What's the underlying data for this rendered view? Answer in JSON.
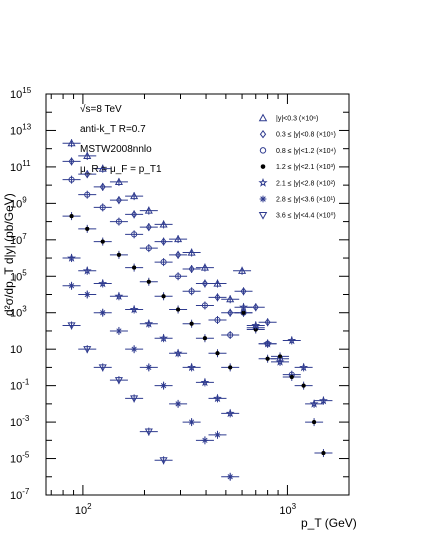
{
  "chart_data": {
    "type": "scatter",
    "title": "",
    "xlabel": "p_T (GeV)",
    "ylabel": "d²σ/dp_T d|y| (pb/GeV)",
    "x_scale": "log",
    "y_scale": "log",
    "xlim": [
      66,
      2000
    ],
    "ylim": [
      1e-07,
      1000000000000000.0
    ],
    "x_tick_labels": [
      {
        "value": 100,
        "base": "10",
        "exp": "2"
      },
      {
        "value": 1000,
        "base": "10",
        "exp": "3"
      }
    ],
    "y_tick_labels": [
      {
        "value": 1e-07,
        "base": "10",
        "exp": "-7"
      },
      {
        "value": 1e-05,
        "base": "10",
        "exp": "-5"
      },
      {
        "value": 0.001,
        "base": "10",
        "exp": "-3"
      },
      {
        "value": 0.1,
        "base": "10",
        "exp": "-1"
      },
      {
        "value": 10,
        "base": "10",
        "exp": ""
      },
      {
        "value": 1000.0,
        "base": "10",
        "exp": "3"
      },
      {
        "value": 100000.0,
        "base": "10",
        "exp": "5"
      },
      {
        "value": 10000000.0,
        "base": "10",
        "exp": "7"
      },
      {
        "value": 1000000000.0,
        "base": "10",
        "exp": "9"
      },
      {
        "value": 100000000000.0,
        "base": "10",
        "exp": "11"
      },
      {
        "value": 10000000000000.0,
        "base": "10",
        "exp": "13"
      },
      {
        "value": 1000000000000000.0,
        "base": "10",
        "exp": "15"
      }
    ],
    "annotations": [
      "√s=8 TeV",
      "anti-k_T R=0.7",
      "MSTW2008nnlo",
      "μ_R = μ_F = p_T1"
    ],
    "legend_position": "top-right",
    "series": [
      {
        "name": "|y|<0.3 (×10⁶)",
        "marker": "triangle-up-open",
        "x": [
          88,
          105,
          125,
          150,
          178,
          210,
          248,
          292,
          340,
          395,
          455,
          525,
          600
        ],
        "y": [
          2000000000000.0,
          400000000000.0,
          80000000000.0,
          15000000000.0,
          2500000000.0,
          400000000.0,
          70000000.0,
          11000000.0,
          2000000.0,
          300000.0,
          40000.0,
          5500.0,
          200000.0
        ]
      },
      {
        "name": "0.3 ≤ |y|<0.8 (×10⁵)",
        "marker": "diamond-open",
        "x": [
          88,
          105,
          125,
          150,
          178,
          210,
          248,
          292,
          340,
          395,
          455,
          525,
          610,
          700,
          800
        ],
        "y": [
          200000000000.0,
          40000000000.0,
          8000000000.0,
          1500000000.0,
          250000000.0,
          50000000.0,
          8000000.0,
          1500000.0,
          250000.0,
          40000.0,
          7000.0,
          1000.0,
          15000.0,
          2000.0,
          300.0
        ]
      },
      {
        "name": "0.8 ≤ |y|<1.2 (×10⁴)",
        "marker": "circle-open",
        "x": [
          88,
          105,
          125,
          150,
          178,
          210,
          248,
          292,
          340,
          395,
          455,
          525,
          610,
          700,
          800,
          920,
          1050
        ],
        "y": [
          20000000000.0,
          3000000000.0,
          600000000.0,
          100000000.0,
          20000000.0,
          3500000.0,
          600000.0,
          100000.0,
          15000.0,
          2500.0,
          400.0,
          60.0,
          1000.0,
          150.0,
          20.0,
          3.0,
          0.4
        ]
      },
      {
        "name": "1.2 ≤ |y|<2.1 (×10³)",
        "marker": "circle-filled",
        "x": [
          88,
          105,
          125,
          150,
          178,
          210,
          248,
          292,
          340,
          395,
          455,
          525,
          610,
          700,
          800,
          920,
          1050,
          1200,
          1350,
          1500
        ],
        "y": [
          200000000.0,
          40000000.0,
          8000000.0,
          1500000.0,
          300000.0,
          50000.0,
          8000.0,
          1500.0,
          250.0,
          40.0,
          6.0,
          1.0,
          1000.0,
          120.0,
          3.0,
          4.0,
          0.3,
          0.1,
          0.001,
          2e-05
        ]
      },
      {
        "name": "2.1 ≤ |y|<2.8 (×10²)",
        "marker": "star-open",
        "x": [
          88,
          105,
          125,
          150,
          178,
          210,
          248,
          292,
          340,
          395,
          455,
          525,
          610,
          700,
          800,
          920,
          1050,
          1200,
          1350,
          1500
        ],
        "y": [
          1000000.0,
          200000.0,
          40000.0,
          8000.0,
          1500.0,
          250.0,
          40.0,
          6.0,
          1.0,
          0.15,
          0.02,
          0.003,
          2000.0,
          200.0,
          20.0,
          2.0,
          30.0,
          1.0,
          0.01,
          0.015
        ]
      },
      {
        "name": "2.8 ≤ |y|<3.6 (×10¹)",
        "marker": "asterisk",
        "x": [
          88,
          105,
          125,
          150,
          178,
          210,
          248,
          292,
          340,
          395,
          455,
          525
        ],
        "y": [
          30000.0,
          10000.0,
          1000.0,
          100.0,
          10.0,
          1.0,
          0.1,
          0.01,
          0.001,
          0.0001,
          0.0002,
          1e-06
        ]
      },
      {
        "name": "3.6 ≤ |y|<4.4 (×10⁰)",
        "marker": "triangle-down-open",
        "x": [
          88,
          105,
          125,
          150,
          178,
          210,
          248
        ],
        "y": [
          200.0,
          10.0,
          1.0,
          0.2,
          0.02,
          0.0003,
          8e-06
        ]
      }
    ]
  }
}
